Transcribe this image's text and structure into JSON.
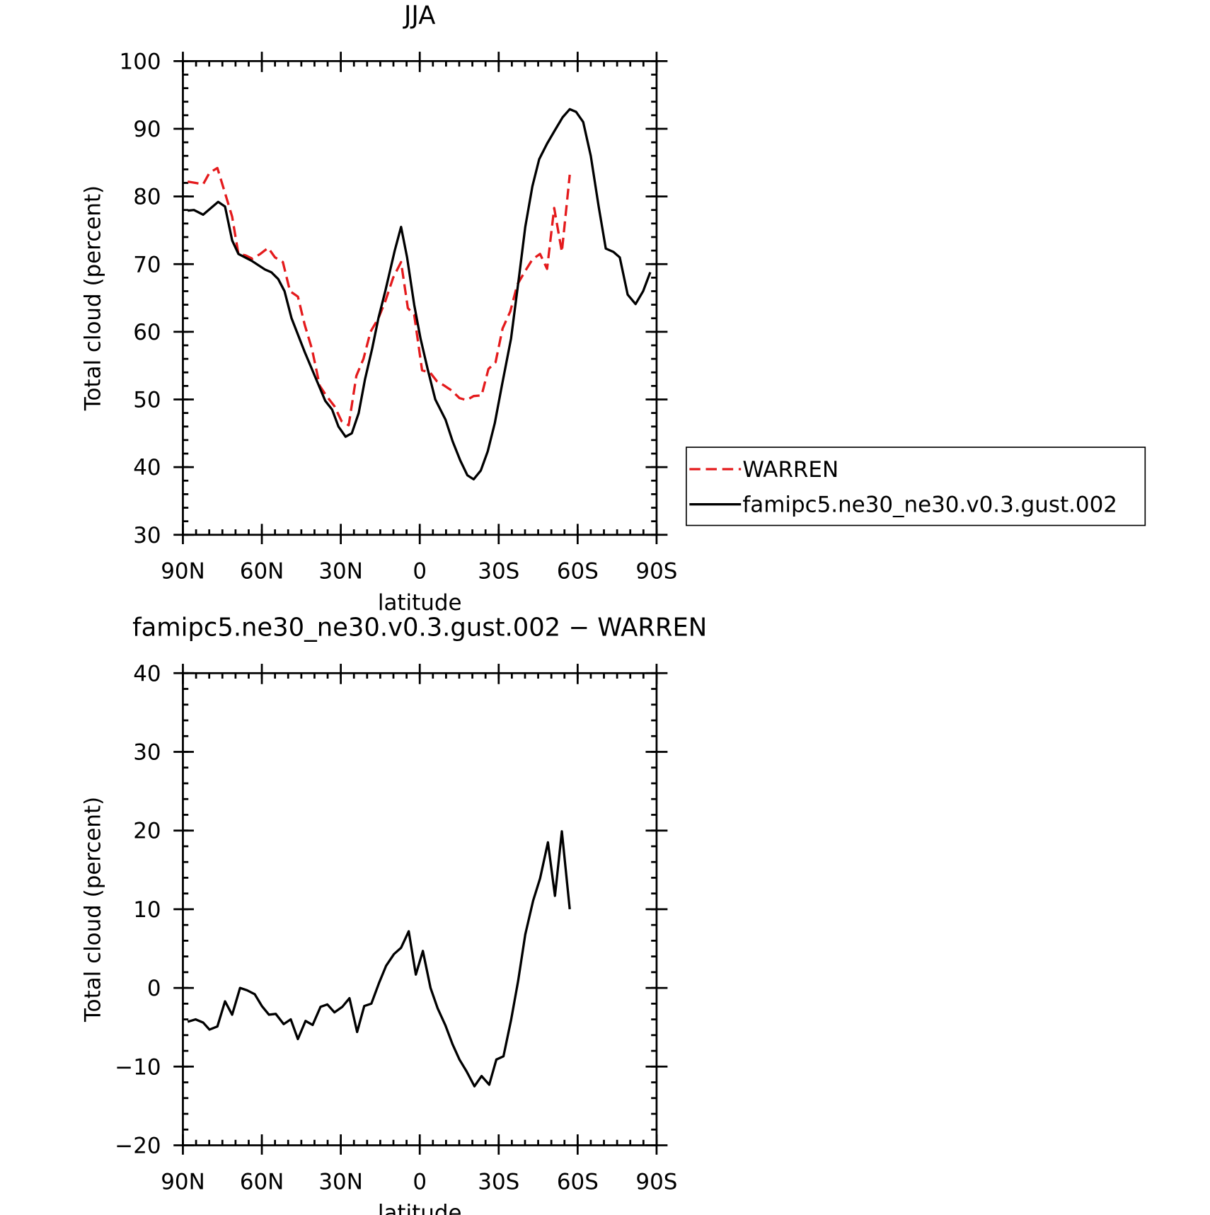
{
  "chart_data": [
    {
      "type": "line",
      "title": "JJA",
      "xlabel": "latitude",
      "ylabel": "Total cloud (percent)",
      "xlim": [
        90,
        -90
      ],
      "ylim": [
        30,
        100
      ],
      "xticks": [
        {
          "value": 90,
          "label": "90N"
        },
        {
          "value": 60,
          "label": "60N"
        },
        {
          "value": 30,
          "label": "30N"
        },
        0,
        {
          "value": -30,
          "label": "30S"
        },
        {
          "value": -60,
          "label": "60S"
        },
        {
          "value": -90,
          "label": "90S"
        }
      ],
      "yticks": [
        30,
        40,
        50,
        60,
        70,
        80,
        90,
        100
      ],
      "legend": "right",
      "series": [
        {
          "name": "WARREN",
          "color": "#e41a1c",
          "style": "dashed",
          "x": [
            88.2,
            85.2,
            82.3,
            79.9,
            76.9,
            74.0,
            71.3,
            68.9,
            66.2,
            63.6,
            60.6,
            57.6,
            55.0,
            52.0,
            49.3,
            46.3,
            43.7,
            41.0,
            38.0,
            35.4,
            32.4,
            29.7,
            27.0,
            24.1,
            21.4,
            18.7,
            15.7,
            13.1,
            10.1,
            7.1,
            4.5,
            2.1,
            -0.9,
            -3.9,
            -6.5,
            -9.5,
            -12.2,
            -15.1,
            -17.8,
            -20.5,
            -23.5,
            -26.1,
            -28.8,
            -31.5,
            -34.4,
            -37.1,
            -40.1,
            -42.8,
            -45.7,
            -48.4,
            -51.1,
            -54.0,
            -57.0
          ],
          "values": [
            82.2,
            82,
            81.8,
            83.5,
            84.2,
            80.5,
            77,
            71.5,
            71.3,
            70.8,
            71.5,
            72.4,
            71,
            70.3,
            66,
            65.2,
            61,
            57.5,
            52,
            50.5,
            49,
            46.8,
            46.2,
            53.5,
            56,
            60,
            62,
            64.5,
            68,
            70.3,
            63.5,
            62.5,
            54.3,
            54,
            52.7,
            52,
            51.3,
            50.2,
            49.9,
            50.5,
            50.6,
            54.5,
            55.5,
            60.5,
            63,
            67,
            69,
            70.7,
            71.5,
            69.3,
            78.3,
            71.8,
            83.2
          ]
        },
        {
          "name": "famipc5.ne30_ne30.v0.3.gust.002",
          "color": "#000000",
          "style": "solid",
          "x": [
            88.2,
            85.8,
            82.3,
            76.6,
            74.0,
            71.3,
            68.9,
            63.9,
            58.8,
            56.4,
            53.8,
            51.4,
            48.7,
            43.7,
            38.3,
            35.9,
            33.3,
            30.9,
            28.2,
            25.8,
            23.2,
            20.8,
            18.1,
            15.7,
            13.1,
            9.5,
            7.1,
            4.8,
            2.1,
            -0.3,
            -3.0,
            -5.9,
            -9.8,
            -12.5,
            -15.4,
            -18.1,
            -20.5,
            -23.2,
            -25.8,
            -28.5,
            -31.2,
            -34.7,
            -37.7,
            -40.1,
            -42.8,
            -45.4,
            -48.4,
            -51.4,
            -54.3,
            -57.0,
            -59.4,
            -62.1,
            -65.0,
            -68.0,
            -70.7,
            -73.6,
            -76.0,
            -79.0,
            -82.0,
            -84.9,
            -87.6
          ],
          "values": [
            77.9,
            78,
            77.3,
            79.2,
            78.5,
            73.5,
            71.5,
            70.5,
            69.2,
            68.8,
            67.8,
            66,
            62,
            57,
            52,
            49.8,
            48.5,
            46,
            44.5,
            45,
            48,
            53,
            57.5,
            62,
            66,
            72,
            75.5,
            71,
            64,
            59,
            54.5,
            50,
            47,
            43.8,
            41,
            38.8,
            38.2,
            39.5,
            42.3,
            46.5,
            52,
            59,
            68,
            75.5,
            81.5,
            85.5,
            87.8,
            89.8,
            91.7,
            92.9,
            92.5,
            91,
            86,
            78.5,
            72.3,
            71.8,
            71,
            65.5,
            64.1,
            66,
            68.8
          ]
        }
      ]
    },
    {
      "type": "line",
      "title": "famipc5.ne30_ne30.v0.3.gust.002 − WARREN",
      "xlabel": "latitude",
      "ylabel": "Total cloud (percent)",
      "xlim": [
        90,
        -90
      ],
      "ylim": [
        -20,
        40
      ],
      "xticks": [
        {
          "value": 90,
          "label": "90N"
        },
        {
          "value": 60,
          "label": "60N"
        },
        {
          "value": 30,
          "label": "30N"
        },
        0,
        {
          "value": -30,
          "label": "30S"
        },
        {
          "value": -60,
          "label": "60S"
        },
        {
          "value": -90,
          "label": "90S"
        }
      ],
      "yticks": [
        {
          "value": -20,
          "label": "−20"
        },
        {
          "value": -10,
          "label": "−10"
        },
        0,
        10,
        20,
        30,
        40
      ],
      "series": [
        {
          "color": "#000000",
          "style": "solid",
          "x": [
            88.2,
            85.2,
            82.3,
            79.9,
            76.9,
            74.0,
            71.3,
            68.3,
            65.6,
            62.7,
            60.0,
            57.3,
            54.7,
            51.7,
            49.0,
            46.3,
            43.4,
            40.7,
            37.7,
            35.1,
            32.4,
            29.4,
            26.7,
            23.8,
            21.1,
            18.4,
            15.5,
            12.8,
            9.8,
            7.1,
            4.2,
            1.5,
            -1.2,
            -4.1,
            -6.8,
            -9.8,
            -12.5,
            -15.1,
            -17.8,
            -20.8,
            -23.5,
            -26.4,
            -29.1,
            -31.8,
            -34.7,
            -37.4,
            -40.1,
            -43.1,
            -45.7,
            -48.7,
            -51.4,
            -54.0,
            -57.0
          ],
          "values": [
            -4.3,
            -4,
            -4.4,
            -5.3,
            -4.9,
            -1.7,
            -3.4,
            0,
            -0.3,
            -0.8,
            -2.3,
            -3.4,
            -3.3,
            -4.6,
            -4,
            -6.5,
            -4.2,
            -4.7,
            -2.4,
            -2.1,
            -3.1,
            -2.4,
            -1.3,
            -5.6,
            -2.3,
            -2,
            0.6,
            2.8,
            4.3,
            5.1,
            7.2,
            1.7,
            4.7,
            0,
            -2.6,
            -4.8,
            -7.2,
            -9.1,
            -10.6,
            -12.5,
            -11.2,
            -12.3,
            -9.1,
            -8.7,
            -4.1,
            0.9,
            6.8,
            11.1,
            13.9,
            18.5,
            11.7,
            19.9,
            10
          ]
        }
      ]
    }
  ]
}
